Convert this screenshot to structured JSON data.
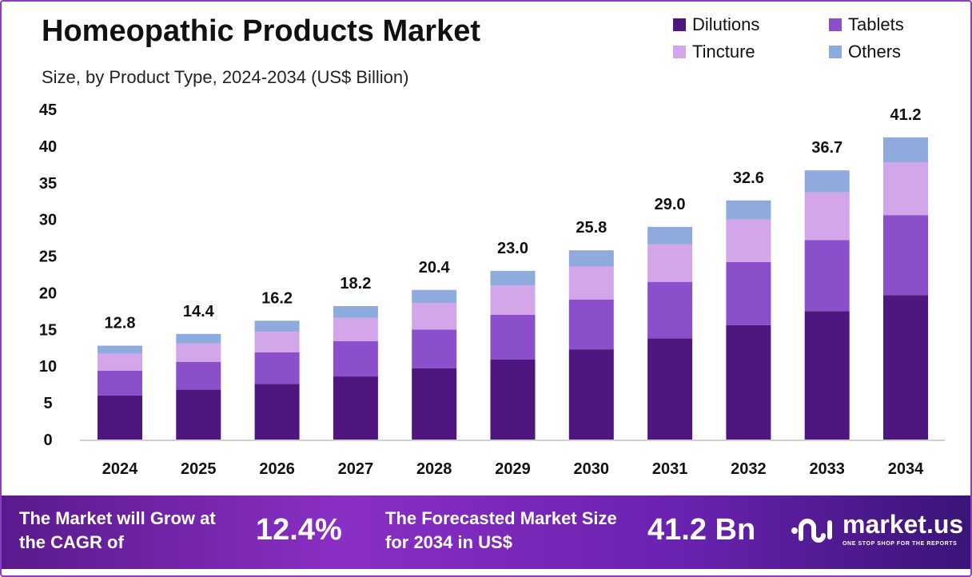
{
  "chart_data": {
    "type": "stacked-bar",
    "title": "Homeopathic Products Market",
    "subtitle": "Size, by Product Type, 2024-2034 (US$ Billion)",
    "categories": [
      "2024",
      "2025",
      "2026",
      "2027",
      "2028",
      "2029",
      "2030",
      "2031",
      "2032",
      "2033",
      "2034"
    ],
    "series": [
      {
        "name": "Dilutions",
        "color": "#4f1680",
        "values": [
          6.0,
          6.8,
          7.6,
          8.6,
          9.7,
          10.9,
          12.3,
          13.8,
          15.6,
          17.5,
          19.7
        ]
      },
      {
        "name": "Tablets",
        "color": "#8b4fcc",
        "values": [
          3.4,
          3.8,
          4.3,
          4.8,
          5.3,
          6.1,
          6.8,
          7.7,
          8.6,
          9.7,
          10.9
        ]
      },
      {
        "name": "Tincture",
        "color": "#d3a6ea",
        "values": [
          2.3,
          2.5,
          2.8,
          3.2,
          3.6,
          4.0,
          4.5,
          5.1,
          5.8,
          6.5,
          7.2
        ]
      },
      {
        "name": "Others",
        "color": "#8faadc",
        "values": [
          1.1,
          1.3,
          1.5,
          1.6,
          1.8,
          2.0,
          2.2,
          2.4,
          2.6,
          3.0,
          3.4
        ]
      }
    ],
    "totals": [
      "12.8",
      "14.4",
      "16.2",
      "18.2",
      "20.4",
      "23.0",
      "25.8",
      "29.0",
      "32.6",
      "36.7",
      "41.2"
    ],
    "ylim": [
      0,
      45
    ],
    "yticks": [
      "0",
      "5",
      "10",
      "15",
      "20",
      "25",
      "30",
      "35",
      "40",
      "45"
    ],
    "grid": false,
    "legend": "top-right"
  },
  "footer": {
    "cagr_label": "The Market will Grow at the CAGR of",
    "cagr_value": "12.4%",
    "forecast_label": "The Forecasted Market Size for 2034 in US$",
    "forecast_value": "41.2 Bn",
    "brand": "market.us",
    "brand_tagline": "ONE STOP SHOP FOR THE REPORTS"
  }
}
